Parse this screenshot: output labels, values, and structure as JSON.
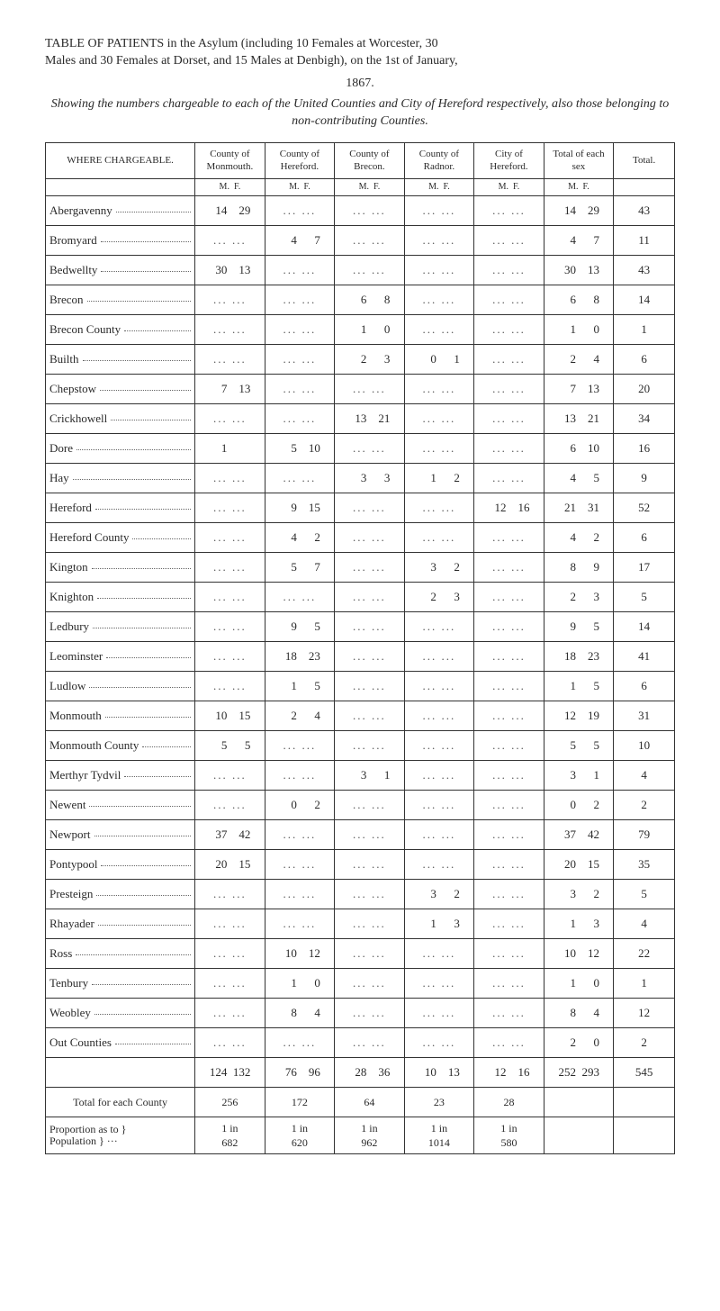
{
  "header": {
    "line1": "TABLE OF PATIENTS in the Asylum (including 10 Females at Worcester, 30",
    "line2": "Males and 30 Females at Dorset, and 15 Males at Denbigh), on the 1st of January,",
    "year": "1867.",
    "subtitle": "Showing the numbers chargeable to each of the United Counties and City of Hereford respectively, also those belonging to non-contributing Counties."
  },
  "columns": {
    "where": "WHERE CHARGEABLE.",
    "c1": "County of Monmouth.",
    "c2": "County of Hereford.",
    "c3": "County of Brecon.",
    "c4": "County of Radnor.",
    "c5": "City of Hereford.",
    "c6": "Total of each sex",
    "c7": "Total."
  },
  "mf": {
    "m": "M.",
    "f": "F."
  },
  "rows": [
    {
      "place": "Abergavenny",
      "c1": {
        "m": "14",
        "f": "29"
      },
      "c2": null,
      "c3": null,
      "c4": null,
      "c5": null,
      "tot": {
        "m": "14",
        "f": "29"
      },
      "grand": "43"
    },
    {
      "place": "Bromyard",
      "c1": null,
      "c2": {
        "m": "4",
        "f": "7"
      },
      "c3": null,
      "c4": null,
      "c5": null,
      "tot": {
        "m": "4",
        "f": "7"
      },
      "grand": "11"
    },
    {
      "place": "Bedwellty",
      "c1": {
        "m": "30",
        "f": "13"
      },
      "c2": null,
      "c3": null,
      "c4": null,
      "c5": null,
      "tot": {
        "m": "30",
        "f": "13"
      },
      "grand": "43"
    },
    {
      "place": "Brecon",
      "c1": null,
      "c2": null,
      "c3": {
        "m": "6",
        "f": "8"
      },
      "c4": null,
      "c5": null,
      "tot": {
        "m": "6",
        "f": "8"
      },
      "grand": "14"
    },
    {
      "place": "Brecon County",
      "c1": null,
      "c2": null,
      "c3": {
        "m": "1",
        "f": "0"
      },
      "c4": null,
      "c5": null,
      "tot": {
        "m": "1",
        "f": "0"
      },
      "grand": "1"
    },
    {
      "place": "Builth",
      "c1": null,
      "c2": null,
      "c3": {
        "m": "2",
        "f": "3"
      },
      "c4": {
        "m": "0",
        "f": "1"
      },
      "c5": null,
      "tot": {
        "m": "2",
        "f": "4"
      },
      "grand": "6"
    },
    {
      "place": "Chepstow",
      "c1": {
        "m": "7",
        "f": "13"
      },
      "c2": null,
      "c3": null,
      "c4": null,
      "c5": null,
      "tot": {
        "m": "7",
        "f": "13"
      },
      "grand": "20"
    },
    {
      "place": "Crickhowell",
      "c1": null,
      "c2": null,
      "c3": {
        "m": "13",
        "f": "21"
      },
      "c4": null,
      "c5": null,
      "tot": {
        "m": "13",
        "f": "21"
      },
      "grand": "34"
    },
    {
      "place": "Dore",
      "c1": {
        "m": "1",
        "f": ""
      },
      "c2": {
        "m": "5",
        "f": "10"
      },
      "c3": null,
      "c4": null,
      "c5": null,
      "tot": {
        "m": "6",
        "f": "10"
      },
      "grand": "16"
    },
    {
      "place": "Hay",
      "c1": null,
      "c2": null,
      "c3": {
        "m": "3",
        "f": "3"
      },
      "c4": {
        "m": "1",
        "f": "2"
      },
      "c5": null,
      "tot": {
        "m": "4",
        "f": "5"
      },
      "grand": "9"
    },
    {
      "place": "Hereford",
      "c1": null,
      "c2": {
        "m": "9",
        "f": "15"
      },
      "c3": null,
      "c4": null,
      "c5": {
        "m": "12",
        "f": "16"
      },
      "tot": {
        "m": "21",
        "f": "31"
      },
      "grand": "52"
    },
    {
      "place": "Hereford County",
      "c1": null,
      "c2": {
        "m": "4",
        "f": "2"
      },
      "c3": null,
      "c4": null,
      "c5": null,
      "tot": {
        "m": "4",
        "f": "2"
      },
      "grand": "6"
    },
    {
      "place": "Kington",
      "c1": null,
      "c2": {
        "m": "5",
        "f": "7"
      },
      "c3": null,
      "c4": {
        "m": "3",
        "f": "2"
      },
      "c5": null,
      "tot": {
        "m": "8",
        "f": "9"
      },
      "grand": "17"
    },
    {
      "place": "Knighton",
      "c1": null,
      "c2": null,
      "c3": null,
      "c4": {
        "m": "2",
        "f": "3"
      },
      "c5": null,
      "tot": {
        "m": "2",
        "f": "3"
      },
      "grand": "5"
    },
    {
      "place": "Ledbury",
      "c1": null,
      "c2": {
        "m": "9",
        "f": "5"
      },
      "c3": null,
      "c4": null,
      "c5": null,
      "tot": {
        "m": "9",
        "f": "5"
      },
      "grand": "14"
    },
    {
      "place": "Leominster",
      "c1": null,
      "c2": {
        "m": "18",
        "f": "23"
      },
      "c3": null,
      "c4": null,
      "c5": null,
      "tot": {
        "m": "18",
        "f": "23"
      },
      "grand": "41"
    },
    {
      "place": "Ludlow",
      "c1": null,
      "c2": {
        "m": "1",
        "f": "5"
      },
      "c3": null,
      "c4": null,
      "c5": null,
      "tot": {
        "m": "1",
        "f": "5"
      },
      "grand": "6"
    },
    {
      "place": "Monmouth",
      "c1": {
        "m": "10",
        "f": "15"
      },
      "c2": {
        "m": "2",
        "f": "4"
      },
      "c3": null,
      "c4": null,
      "c5": null,
      "tot": {
        "m": "12",
        "f": "19"
      },
      "grand": "31"
    },
    {
      "place": "Monmouth County",
      "c1": {
        "m": "5",
        "f": "5"
      },
      "c2": null,
      "c3": null,
      "c4": null,
      "c5": null,
      "tot": {
        "m": "5",
        "f": "5"
      },
      "grand": "10"
    },
    {
      "place": "Merthyr Tydvil",
      "c1": null,
      "c2": null,
      "c3": {
        "m": "3",
        "f": "1"
      },
      "c4": null,
      "c5": null,
      "tot": {
        "m": "3",
        "f": "1"
      },
      "grand": "4"
    },
    {
      "place": "Newent",
      "c1": null,
      "c2": {
        "m": "0",
        "f": "2"
      },
      "c3": null,
      "c4": null,
      "c5": null,
      "tot": {
        "m": "0",
        "f": "2"
      },
      "grand": "2"
    },
    {
      "place": "Newport",
      "c1": {
        "m": "37",
        "f": "42"
      },
      "c2": null,
      "c3": null,
      "c4": null,
      "c5": null,
      "tot": {
        "m": "37",
        "f": "42"
      },
      "grand": "79"
    },
    {
      "place": "Pontypool",
      "c1": {
        "m": "20",
        "f": "15"
      },
      "c2": null,
      "c3": null,
      "c4": null,
      "c5": null,
      "tot": {
        "m": "20",
        "f": "15"
      },
      "grand": "35"
    },
    {
      "place": "Presteign",
      "c1": null,
      "c2": null,
      "c3": null,
      "c4": {
        "m": "3",
        "f": "2"
      },
      "c5": null,
      "tot": {
        "m": "3",
        "f": "2"
      },
      "grand": "5"
    },
    {
      "place": "Rhayader",
      "c1": null,
      "c2": null,
      "c3": null,
      "c4": {
        "m": "1",
        "f": "3"
      },
      "c5": null,
      "tot": {
        "m": "1",
        "f": "3"
      },
      "grand": "4"
    },
    {
      "place": "Ross",
      "c1": null,
      "c2": {
        "m": "10",
        "f": "12"
      },
      "c3": null,
      "c4": null,
      "c5": null,
      "tot": {
        "m": "10",
        "f": "12"
      },
      "grand": "22"
    },
    {
      "place": "Tenbury",
      "c1": null,
      "c2": {
        "m": "1",
        "f": "0"
      },
      "c3": null,
      "c4": null,
      "c5": null,
      "tot": {
        "m": "1",
        "f": "0"
      },
      "grand": "1"
    },
    {
      "place": "Weobley",
      "c1": null,
      "c2": {
        "m": "8",
        "f": "4"
      },
      "c3": null,
      "c4": null,
      "c5": null,
      "tot": {
        "m": "8",
        "f": "4"
      },
      "grand": "12"
    },
    {
      "place": "Out Counties",
      "c1": null,
      "c2": null,
      "c3": null,
      "c4": null,
      "c5": null,
      "tot": {
        "m": "2",
        "f": "0"
      },
      "grand": "2"
    }
  ],
  "sum": {
    "c1": {
      "m": "124",
      "f": "132"
    },
    "c2": {
      "m": "76",
      "f": "96"
    },
    "c3": {
      "m": "28",
      "f": "36"
    },
    "c4": {
      "m": "10",
      "f": "13"
    },
    "c5": {
      "m": "12",
      "f": "16"
    },
    "tot": {
      "m": "252",
      "f": "293"
    },
    "grand": "545"
  },
  "county_total": {
    "label": "Total for each County",
    "c1": "256",
    "c2": "172",
    "c3": "64",
    "c4": "23",
    "c5": "28"
  },
  "proportion": {
    "label1": "Proportion as to }",
    "label2": "Population     } ···",
    "c1a": "1 in",
    "c1b": "682",
    "c2a": "1 in",
    "c2b": "620",
    "c3a": "1 in",
    "c3b": "962",
    "c4a": "1 in",
    "c4b": "1014",
    "c5a": "1 in",
    "c5b": "580"
  },
  "style": {
    "background": "#ffffff",
    "text_color": "#2a2a2a",
    "border_color": "#333333",
    "font_family": "Georgia, Times New Roman, serif",
    "base_fontsize": 14,
    "table_fontsize": 13,
    "header_fontsize": 11
  }
}
